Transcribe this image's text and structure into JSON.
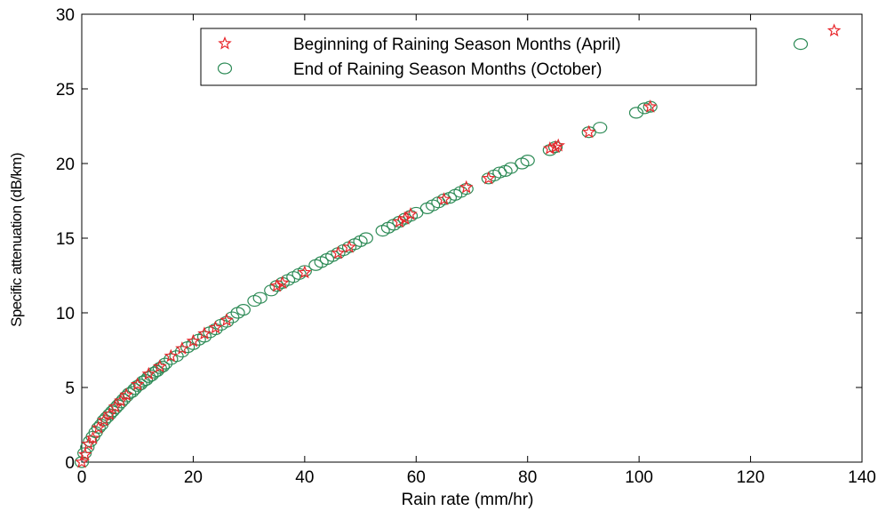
{
  "chart_data": {
    "type": "scatter",
    "xlabel": "Rain rate (mm/hr)",
    "ylabel": "Specific attenuation (dB/km)",
    "xlim": [
      0,
      140
    ],
    "ylim": [
      0,
      30
    ],
    "xticks": [
      0,
      20,
      40,
      60,
      80,
      100,
      120,
      140
    ],
    "yticks": [
      0,
      5,
      10,
      15,
      20,
      25,
      30
    ],
    "grid": false,
    "legend_position": "top-right",
    "series": [
      {
        "name": "Beginning of Raining Season Months (April)",
        "marker": "star",
        "color": "#e8262b",
        "points": [
          [
            0,
            0
          ],
          [
            0.6,
            0.5
          ],
          [
            1.2,
            1.2
          ],
          [
            2,
            1.6
          ],
          [
            3,
            2.3
          ],
          [
            4,
            2.8
          ],
          [
            5,
            3.2
          ],
          [
            6,
            3.7
          ],
          [
            7,
            4.1
          ],
          [
            8,
            4.5
          ],
          [
            10,
            5.2
          ],
          [
            12,
            5.9
          ],
          [
            14,
            6.4
          ],
          [
            16,
            7.1
          ],
          [
            18,
            7.6
          ],
          [
            20,
            8.1
          ],
          [
            22,
            8.6
          ],
          [
            24,
            9.0
          ],
          [
            26,
            9.5
          ],
          [
            35,
            11.8
          ],
          [
            36,
            12.0
          ],
          [
            40,
            12.7
          ],
          [
            46,
            14.0
          ],
          [
            48,
            14.4
          ],
          [
            57,
            16.1
          ],
          [
            58,
            16.3
          ],
          [
            59,
            16.6
          ],
          [
            65,
            17.6
          ],
          [
            69,
            18.4
          ],
          [
            73,
            19.0
          ],
          [
            84,
            21.0
          ],
          [
            85,
            21.1
          ],
          [
            85.5,
            21.2
          ],
          [
            91,
            22.1
          ],
          [
            102,
            23.8
          ],
          [
            135,
            28.9
          ]
        ]
      },
      {
        "name": "End of Raining Season Months (October)",
        "marker": "circle",
        "color": "#2e8b57",
        "points": [
          [
            0,
            0
          ],
          [
            0.5,
            0.6
          ],
          [
            1,
            1.0
          ],
          [
            1.5,
            1.4
          ],
          [
            2,
            1.7
          ],
          [
            2.5,
            2.0
          ],
          [
            3,
            2.3
          ],
          [
            3.5,
            2.5
          ],
          [
            4,
            2.8
          ],
          [
            4.5,
            3.0
          ],
          [
            5,
            3.2
          ],
          [
            5.5,
            3.4
          ],
          [
            6,
            3.6
          ],
          [
            6.5,
            3.8
          ],
          [
            7,
            4.0
          ],
          [
            7.5,
            4.2
          ],
          [
            8,
            4.4
          ],
          [
            8.5,
            4.6
          ],
          [
            9,
            4.7
          ],
          [
            9.5,
            4.9
          ],
          [
            10,
            5.1
          ],
          [
            10.5,
            5.2
          ],
          [
            11,
            5.4
          ],
          [
            11.5,
            5.5
          ],
          [
            12,
            5.7
          ],
          [
            12.5,
            5.8
          ],
          [
            13,
            6.0
          ],
          [
            13.5,
            6.1
          ],
          [
            14,
            6.3
          ],
          [
            14.5,
            6.4
          ],
          [
            15,
            6.6
          ],
          [
            16,
            6.9
          ],
          [
            17,
            7.1
          ],
          [
            18,
            7.4
          ],
          [
            19,
            7.7
          ],
          [
            20,
            7.9
          ],
          [
            21,
            8.2
          ],
          [
            22,
            8.4
          ],
          [
            23,
            8.7
          ],
          [
            24,
            8.9
          ],
          [
            25,
            9.2
          ],
          [
            26,
            9.4
          ],
          [
            27,
            9.7
          ],
          [
            28,
            10.0
          ],
          [
            29,
            10.2
          ],
          [
            31,
            10.8
          ],
          [
            32,
            11.0
          ],
          [
            34,
            11.5
          ],
          [
            35,
            11.8
          ],
          [
            36,
            12.0
          ],
          [
            37,
            12.2
          ],
          [
            38,
            12.4
          ],
          [
            39,
            12.6
          ],
          [
            40,
            12.8
          ],
          [
            42,
            13.2
          ],
          [
            43,
            13.4
          ],
          [
            44,
            13.6
          ],
          [
            45,
            13.8
          ],
          [
            46,
            14.0
          ],
          [
            47,
            14.2
          ],
          [
            48,
            14.4
          ],
          [
            49,
            14.6
          ],
          [
            50,
            14.8
          ],
          [
            51,
            15.0
          ],
          [
            54,
            15.5
          ],
          [
            55,
            15.7
          ],
          [
            56,
            15.9
          ],
          [
            57,
            16.1
          ],
          [
            58,
            16.3
          ],
          [
            59,
            16.5
          ],
          [
            60,
            16.7
          ],
          [
            62,
            17.0
          ],
          [
            63,
            17.2
          ],
          [
            64,
            17.4
          ],
          [
            65,
            17.6
          ],
          [
            66,
            17.7
          ],
          [
            67,
            17.9
          ],
          [
            68,
            18.1
          ],
          [
            69,
            18.3
          ],
          [
            73,
            19.0
          ],
          [
            74,
            19.2
          ],
          [
            75,
            19.4
          ],
          [
            76,
            19.5
          ],
          [
            77,
            19.7
          ],
          [
            79,
            20.0
          ],
          [
            80,
            20.2
          ],
          [
            84,
            20.9
          ],
          [
            85,
            21.1
          ],
          [
            91,
            22.1
          ],
          [
            93,
            22.4
          ],
          [
            99.5,
            23.4
          ],
          [
            101,
            23.7
          ],
          [
            102,
            23.8
          ],
          [
            129,
            28.0
          ]
        ]
      }
    ]
  }
}
